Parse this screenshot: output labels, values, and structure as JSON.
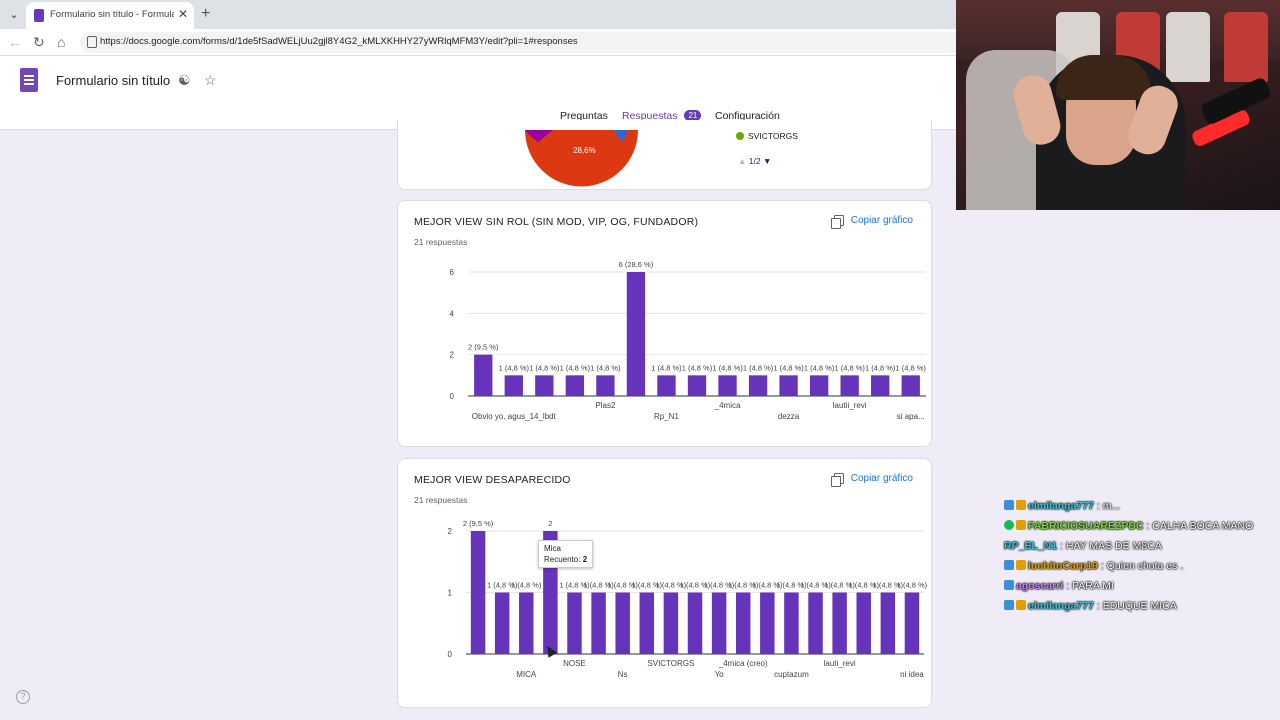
{
  "browser": {
    "tab_title": "Formulario sin título - Formularios",
    "url": "https://docs.google.com/forms/d/1de5fSadWELjUu2gjl8Y4G2_kMLXKHHY27yWRlqMFM3Y/edit?pli=1#responses"
  },
  "form": {
    "title": "Formulario sin título",
    "tabs": {
      "questions": "Preguntas",
      "responses": "Respuestas",
      "responses_count": "21",
      "settings": "Configuración"
    }
  },
  "top_card": {
    "pie_label": "28,6%",
    "legend_item": "SVICTORGS",
    "pager": "1/2"
  },
  "copy_label": "Copiar gráfico",
  "charts": [
    {
      "title": "MEJOR VIEW SIN ROL (SIN MOD, VIP, OG, FUNDADOR)",
      "count": "21 respuestas",
      "chart_data": {
        "type": "bar",
        "ylim": [
          0,
          6
        ],
        "yticks": [
          "0",
          "2",
          "4",
          "6"
        ],
        "values": [
          2,
          1,
          1,
          1,
          1,
          6,
          1,
          1,
          1,
          1,
          1,
          1,
          1,
          1,
          1
        ],
        "labels": [
          "2 (9,5 %)",
          "1 (4,8 %)",
          "1 (4,8 %)",
          "1 (4,8 %)",
          "1 (4,8 %)",
          "6 (28,6 %)",
          "1 (4,8 %)",
          "1 (4,8 %)",
          "1 (4,8 %)",
          "1 (4,8 %)",
          "1 (4,8 %)",
          "1 (4,8 %)",
          "1 (4,8 %)",
          "1 (4,8 %)",
          "1 (4,8 %)"
        ],
        "xlabels_row1": [
          "",
          "",
          "",
          "",
          "Plas2",
          "",
          "",
          "",
          "_4mica",
          "",
          "",
          "",
          "lautii_revi",
          "",
          ""
        ],
        "xlabels_row2": [
          "",
          "Obvio yo, agus_14_lbdt",
          "",
          "",
          "",
          "",
          "Rp_N1",
          "",
          "",
          "",
          "dezza",
          "",
          "",
          "",
          "si apa..."
        ]
      }
    },
    {
      "title": "MEJOR VIEW DESAPARECIDO",
      "count": "21 respuestas",
      "chart_data": {
        "type": "bar",
        "ylim": [
          0,
          2
        ],
        "yticks": [
          "0",
          "1",
          "2"
        ],
        "values": [
          2,
          1,
          1,
          2,
          1,
          1,
          1,
          1,
          1,
          1,
          1,
          1,
          1,
          1,
          1,
          1,
          1,
          1,
          1
        ],
        "labels": [
          "2 (9,5 %)",
          "1 (4,8 %)",
          "1 (4,8 %)",
          "2",
          "1 (4,8 %)",
          "1 (4,8 %)",
          "1 (4,8 %)",
          "1 (4,8 %)",
          "1 (4,8 %)",
          "1 (4,8 %)",
          "1 (4,8 %)",
          "1 (4,8 %)",
          "1 (4,8 %)",
          "1 (4,8 %)",
          "1 (4,8 %)",
          "1 (4,8 %)",
          "1 (4,8 %)",
          "1 (4,8 %)",
          "1 (4,8 %)"
        ],
        "xlabels_row1": [
          "",
          "",
          "",
          "",
          "NOSE",
          "",
          "",
          "",
          "SVICTORGS",
          "",
          "",
          "_4mica (creo)",
          "",
          "",
          "",
          "lauti_revi",
          "",
          "",
          ""
        ],
        "xlabels_row2": [
          "",
          "",
          "MICA",
          "",
          "",
          "",
          "Ns",
          "",
          "",
          "",
          "Yo",
          "",
          "",
          "cuptazum",
          "",
          "",
          "",
          "",
          "ni idea"
        ],
        "tooltip": {
          "name": "Mica",
          "label": "Recuento:",
          "value": "2"
        }
      }
    }
  ],
  "colors": {
    "bar": "#6633bb",
    "accent": "#673ab7",
    "link": "#1a73e8"
  },
  "chat": [
    {
      "user": "elmilanga777",
      "msg": ": m...",
      "color": "#3ec2d6",
      "badges": [
        "b-blue",
        "b-gold"
      ]
    },
    {
      "user": "FABRICIOSUAREZPDC",
      "msg": ": CALHA BOCA MANO",
      "color": "#7cd63a",
      "badges": [
        "b-green",
        "b-gold"
      ]
    },
    {
      "user": "RP_EL_N1",
      "msg": ": HAY MAS DE M8CA",
      "color": "#3ec2d6",
      "badges": []
    },
    {
      "user": "luchitoCarp19",
      "msg": ": Quien chota es .",
      "color": "#e0a100",
      "badges": [
        "b-blue",
        "b-gold"
      ]
    },
    {
      "user": "agoscarri",
      "msg": ": PARA MI",
      "color": "#c58af0",
      "badges": [
        "b-blue"
      ]
    },
    {
      "user": "elmilanga777",
      "msg": ": EDUQUE MICA",
      "color": "#3ec2d6",
      "badges": [
        "b-blue",
        "b-gold"
      ]
    }
  ]
}
